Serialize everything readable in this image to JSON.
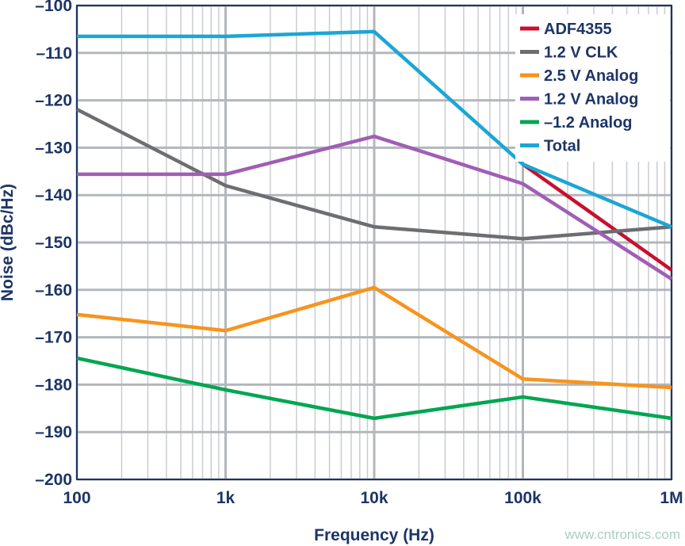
{
  "chart_data": {
    "type": "line",
    "title": "",
    "xlabel": "Frequency (Hz)",
    "ylabel": "Noise (dBc/Hz)",
    "xscale": "log",
    "xlim": [
      100,
      1000000
    ],
    "ylim": [
      -200,
      -100
    ],
    "grid": true,
    "legend_placement": "top-right",
    "x": [
      100,
      1000,
      10000,
      100000,
      1000000
    ],
    "xticks": [
      {
        "v": 100,
        "label": "100"
      },
      {
        "v": 1000,
        "label": "1k"
      },
      {
        "v": 10000,
        "label": "10k"
      },
      {
        "v": 100000,
        "label": "100k"
      },
      {
        "v": 1000000,
        "label": "1M"
      }
    ],
    "yticks": [
      {
        "v": -100,
        "label": "–100"
      },
      {
        "v": -110,
        "label": "–110"
      },
      {
        "v": -120,
        "label": "–120"
      },
      {
        "v": -130,
        "label": "–130"
      },
      {
        "v": -140,
        "label": "–140"
      },
      {
        "v": -150,
        "label": "–150"
      },
      {
        "v": -160,
        "label": "–160"
      },
      {
        "v": -170,
        "label": "–170"
      },
      {
        "v": -180,
        "label": "–180"
      },
      {
        "v": -190,
        "label": "–190"
      },
      {
        "v": -200,
        "label": "–200"
      }
    ],
    "series": [
      {
        "name": "ADF4355",
        "color": "#c8102e",
        "values": [
          null,
          null,
          null,
          -133.5,
          -155.8
        ]
      },
      {
        "name": "1.2 V CLK",
        "color": "#6d6e71",
        "values": [
          -121.9,
          -138,
          -146.7,
          -149.2,
          -146.7
        ]
      },
      {
        "name": "2.5 V Analog",
        "color": "#f7941d",
        "values": [
          -165.2,
          -168.6,
          -159.5,
          -178.8,
          -180.6
        ]
      },
      {
        "name": "1.2 V Analog",
        "color": "#a05eb5",
        "values": [
          -135.6,
          -135.6,
          -127.6,
          -137.6,
          -157.7
        ]
      },
      {
        "name": "–1.2 Analog",
        "color": "#00a651",
        "values": [
          -174.4,
          -181.1,
          -187.1,
          -182.6,
          -187.1
        ]
      },
      {
        "name": "Total",
        "color": "#1ba6d6",
        "values": [
          -106.5,
          -106.5,
          -105.5,
          -133.5,
          -146.7
        ]
      }
    ]
  },
  "watermark": "www.cntronics.com"
}
